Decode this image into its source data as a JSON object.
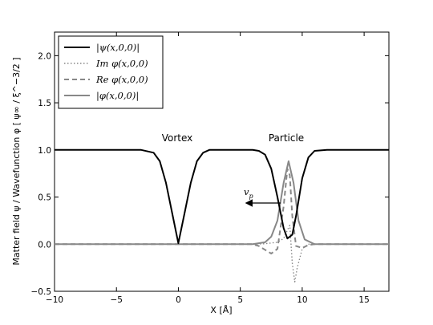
{
  "chart_data": {
    "type": "line",
    "xlabel": "X [Å]",
    "ylabel": "Matter field ψ / Wavefunction φ [ ψ∞ / ξ^−3/2 ]",
    "xlim": [
      -10,
      17
    ],
    "ylim": [
      -0.5,
      2.25
    ],
    "xticks": [
      -10,
      -5,
      0,
      5,
      10,
      15
    ],
    "yticks": [
      -0.5,
      0.0,
      0.5,
      1.0,
      1.5,
      2.0
    ],
    "xtick_labels": [
      "−10",
      "−5",
      "0",
      "5",
      "10",
      "15"
    ],
    "ytick_labels": [
      "−0.5",
      "0.0",
      "0.5",
      "1.0",
      "1.5",
      "2.0"
    ],
    "legend_position": "top-left",
    "annotations": {
      "vortex": "Vortex",
      "particle": "Particle",
      "velocity": "v",
      "velocity_sub": "p"
    },
    "series": [
      {
        "name": "|ψ(x,0,0)|",
        "color": "#000000",
        "style": "solid",
        "x": [
          -10,
          -3,
          -2,
          -1.5,
          -1,
          -0.5,
          0,
          0.5,
          1,
          1.5,
          2,
          2.5,
          3,
          4,
          5,
          6,
          6.5,
          7,
          7.5,
          8,
          8.5,
          8.8,
          9.2,
          9.5,
          10,
          10.5,
          11,
          12,
          17
        ],
        "y": [
          1.0,
          1.0,
          0.97,
          0.88,
          0.65,
          0.33,
          0.01,
          0.33,
          0.65,
          0.88,
          0.97,
          1.0,
          1.0,
          1.0,
          1.0,
          1.0,
          0.99,
          0.95,
          0.8,
          0.5,
          0.17,
          0.06,
          0.1,
          0.3,
          0.7,
          0.92,
          0.99,
          1.0,
          1.0
        ]
      },
      {
        "name": "Im φ(x,0,0)",
        "color": "#888888",
        "style": "dotted",
        "x": [
          -10,
          6,
          7,
          8,
          8.5,
          8.8,
          9.0,
          9.2,
          9.4,
          9.6,
          10.0,
          10.5,
          11,
          17
        ],
        "y": [
          0,
          0,
          0.005,
          0.02,
          0.06,
          0.15,
          0.2,
          -0.2,
          -0.4,
          -0.25,
          -0.05,
          0.0,
          0,
          0
        ]
      },
      {
        "name": "Re φ(x,0,0)",
        "color": "#888888",
        "style": "dashed",
        "x": [
          -10,
          6,
          6.5,
          7,
          7.5,
          8,
          8.5,
          8.8,
          9.0,
          9.2,
          9.5,
          10,
          10.5,
          11,
          17
        ],
        "y": [
          0,
          0,
          -0.02,
          -0.06,
          -0.1,
          -0.05,
          0.4,
          0.8,
          0.73,
          0.3,
          -0.02,
          -0.04,
          -0.01,
          0,
          0
        ]
      },
      {
        "name": "|φ(x,0,0)|",
        "color": "#888888",
        "style": "solid",
        "x": [
          -10,
          6,
          7,
          7.5,
          8,
          8.5,
          8.9,
          9.3,
          9.7,
          10.2,
          11,
          17
        ],
        "y": [
          0,
          0,
          0.02,
          0.08,
          0.25,
          0.65,
          0.88,
          0.65,
          0.25,
          0.05,
          0,
          0
        ]
      }
    ]
  }
}
